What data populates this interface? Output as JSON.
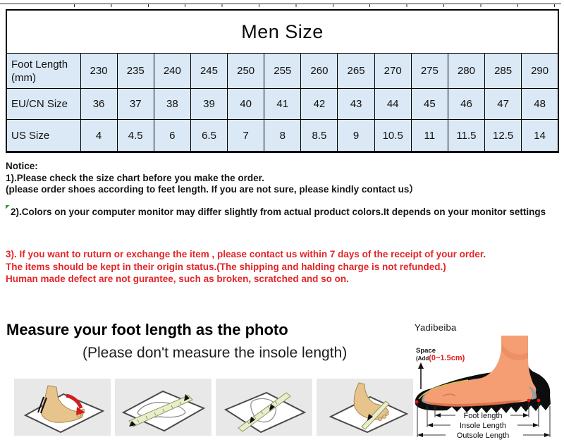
{
  "size_table": {
    "title": "Men Size",
    "cell_bg": "#dbe8f5",
    "rows": [
      {
        "label": "Foot Length (mm)",
        "values": [
          "230",
          "235",
          "240",
          "245",
          "250",
          "255",
          "260",
          "265",
          "270",
          "275",
          "280",
          "285",
          "290"
        ]
      },
      {
        "label": "EU/CN Size",
        "values": [
          "36",
          "37",
          "38",
          "39",
          "40",
          "41",
          "42",
          "43",
          "44",
          "45",
          "46",
          "47",
          "48"
        ]
      },
      {
        "label": "US Size",
        "values": [
          "4",
          "4.5",
          "6",
          "6.5",
          "7",
          "8",
          "8.5",
          "9",
          "10.5",
          "11",
          "11.5",
          "12.5",
          "14"
        ]
      }
    ]
  },
  "notice": {
    "heading": "Notice:",
    "line1": "1).Please check the size chart before you make the order.",
    "line2": "(please order shoes according to feet length. If you are not sure, please kindly contact us）",
    "line3": "2).Colors on your computer monitor may differ slightly from actual product colors.It depends on your monitor settings",
    "flag_color": "#2e9b2e"
  },
  "returns_notice": {
    "color": "#e42528",
    "line1": "3). If you want to ruturn or exchange the item , please contact us within 7 days of the receipt of your order.",
    "line2": "The items should be kept in their origin status.(The shipping and halding charge is not refunded.)",
    "line3": "Human made defect are not gurantee, such as broken, scratched and so on."
  },
  "measure_section": {
    "heading": "Measure your foot length as the photo",
    "subheading": "(Please don't measure the insole length)",
    "brand": "Yadibeiba",
    "steps": [
      {
        "icon": "foot-tracing-step-image"
      },
      {
        "icon": "length-measuring-step-image"
      },
      {
        "icon": "width-measuring-step-image"
      },
      {
        "icon": "ball-width-measuring-step-image"
      }
    ],
    "diagram": {
      "space_label": "Space",
      "add_label": "(Add",
      "add_value": "(0~1.5cm)",
      "foot_length_label": "Foot length",
      "insole_length_label": "Insole Length",
      "outsole_length_label": "Outsole Length"
    }
  }
}
